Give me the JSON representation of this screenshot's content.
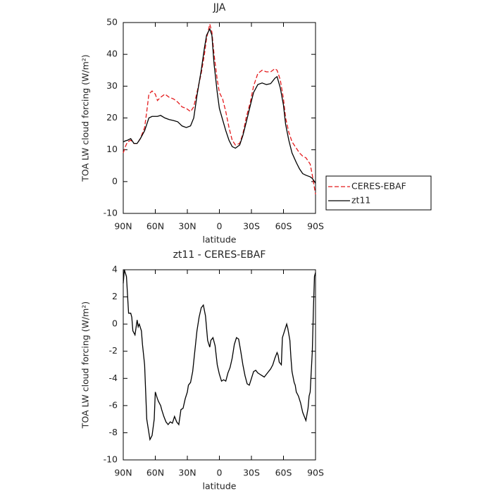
{
  "chart_data": [
    {
      "type": "line",
      "title": "JJA",
      "xlabel": "latitude",
      "ylabel": "TOA LW cloud forcing (W/m²)",
      "x": [
        90,
        88,
        86,
        83,
        80,
        77,
        74,
        70,
        68,
        66,
        63,
        60,
        58,
        55,
        51,
        47,
        43,
        39,
        35,
        31,
        27,
        24,
        21,
        17,
        14,
        12,
        9,
        7,
        5,
        2,
        0,
        -3,
        -6,
        -9,
        -12,
        -15,
        -19,
        -22,
        -25,
        -29,
        -32,
        -36,
        -40,
        -44,
        -48,
        -52,
        -54,
        -57,
        -60,
        -62,
        -65,
        -68,
        -72,
        -75,
        -78,
        -81,
        -85,
        -87,
        -90
      ],
      "series": [
        {
          "name": "CERES-EBAF",
          "color": "#e41a1c",
          "dash": true,
          "values": [
            9,
            11,
            12.5,
            13,
            12,
            12,
            13.5,
            17,
            22,
            27.5,
            28.5,
            27.5,
            25.5,
            26.5,
            27.5,
            26.5,
            26,
            25,
            23.5,
            23,
            22,
            23.5,
            28,
            34,
            40,
            45,
            49.5,
            47,
            40,
            32,
            28,
            26,
            22,
            17,
            13,
            11.5,
            12,
            15,
            20,
            25,
            30,
            34,
            35,
            34.5,
            34.5,
            35.5,
            35,
            32,
            26,
            20,
            15.5,
            12.5,
            10.5,
            9,
            8,
            7.5,
            5.5,
            2,
            -4
          ]
        },
        {
          "name": "zt11",
          "color": "#000000",
          "dash": false,
          "values": [
            12.5,
            12.8,
            13,
            13.5,
            12,
            12,
            13.5,
            16,
            18,
            20,
            20.5,
            20.5,
            20.5,
            20.8,
            20,
            19.5,
            19.2,
            18.8,
            17.5,
            17,
            17.5,
            20,
            27,
            35,
            42,
            46,
            48,
            46,
            37,
            28,
            23,
            19.5,
            16,
            13,
            11,
            10.5,
            11.5,
            14.5,
            18.5,
            24,
            28,
            30.5,
            31,
            30.5,
            30.8,
            32.5,
            33,
            29.5,
            24,
            18,
            13,
            9,
            6,
            4,
            2.5,
            2,
            1.5,
            1,
            -0.5
          ]
        }
      ],
      "xlim": [
        90,
        -90
      ],
      "xticks": [
        {
          "value": 90,
          "label": "90N"
        },
        {
          "value": 60,
          "label": "60N"
        },
        {
          "value": 30,
          "label": "30N"
        },
        0,
        {
          "value": -30,
          "label": "30S"
        },
        {
          "value": -60,
          "label": "60S"
        },
        {
          "value": -90,
          "label": "90S"
        }
      ],
      "ylim": [
        -10,
        50
      ],
      "yticks": [
        -10,
        0,
        10,
        20,
        30,
        40,
        50
      ],
      "legend": "outside-right"
    },
    {
      "type": "line",
      "title": "zt11 - CERES-EBAF",
      "xlabel": "latitude",
      "ylabel": "TOA LW cloud forcing (W/m²)",
      "x": [
        90,
        89,
        87,
        85,
        83,
        82,
        81,
        79,
        77,
        76,
        75,
        73,
        72,
        70,
        69,
        68,
        66,
        65,
        63,
        61,
        60,
        58,
        57,
        55,
        54,
        52,
        50,
        48,
        46,
        44,
        42,
        40,
        38,
        36,
        34,
        32,
        30,
        29,
        27,
        25,
        23,
        21,
        19,
        17,
        15,
        13,
        11,
        9,
        8,
        6,
        4,
        2,
        0,
        -2,
        -4,
        -6,
        -8,
        -10,
        -12,
        -14,
        -16,
        -18,
        -20,
        -22,
        -24,
        -26,
        -28,
        -30,
        -32,
        -34,
        -36,
        -38,
        -40,
        -42,
        -44,
        -46,
        -48,
        -50,
        -52,
        -54,
        -55,
        -56,
        -58,
        -59,
        -61,
        -63,
        -64,
        -66,
        -67,
        -68,
        -70,
        -71,
        -72,
        -74,
        -76,
        -78,
        -80,
        -81,
        -83,
        -84,
        -85,
        -87,
        -88,
        -89,
        -90
      ],
      "values": [
        3,
        4,
        3.5,
        0.8,
        0.8,
        0.5,
        -0.5,
        -0.8,
        0.3,
        -0.2,
        0,
        -0.5,
        -1.5,
        -3,
        -5,
        -7,
        -8,
        -8.5,
        -8.2,
        -7,
        -5,
        -5.5,
        -5.7,
        -6,
        -6.3,
        -6.8,
        -7.2,
        -7.4,
        -7.2,
        -7.3,
        -6.8,
        -7.2,
        -7.4,
        -6.3,
        -6.2,
        -5.5,
        -5,
        -4.5,
        -4.3,
        -3.5,
        -2,
        -0.5,
        0.5,
        1.2,
        1.4,
        0.6,
        -1.2,
        -1.7,
        -1.2,
        -1,
        -1.6,
        -3,
        -3.7,
        -4.2,
        -4.1,
        -4.2,
        -3.6,
        -3.2,
        -2.5,
        -1.5,
        -1,
        -1.1,
        -2,
        -3,
        -3.8,
        -4.4,
        -4.5,
        -4,
        -3.5,
        -3.4,
        -3.6,
        -3.7,
        -3.8,
        -3.9,
        -3.7,
        -3.5,
        -3.3,
        -3,
        -2.5,
        -2.1,
        -2.3,
        -2.8,
        -3,
        -1,
        -0.5,
        0,
        -0.3,
        -1.2,
        -2.5,
        -3.5,
        -4.3,
        -4.5,
        -5,
        -5.3,
        -5.8,
        -6.5,
        -6.9,
        -7.1,
        -6.2,
        -5.3,
        -5,
        -2,
        1,
        3.5,
        3.8
      ],
      "color": "#000000",
      "xlim": [
        90,
        -90
      ],
      "xticks": [
        {
          "value": 90,
          "label": "90N"
        },
        {
          "value": 60,
          "label": "60N"
        },
        {
          "value": 30,
          "label": "30N"
        },
        0,
        {
          "value": -30,
          "label": "30S"
        },
        {
          "value": -60,
          "label": "60S"
        },
        {
          "value": -90,
          "label": "90S"
        }
      ],
      "ylim": [
        -10,
        4
      ],
      "yticks": [
        -10,
        -8,
        -6,
        -4,
        -2,
        0,
        2,
        4
      ]
    }
  ]
}
